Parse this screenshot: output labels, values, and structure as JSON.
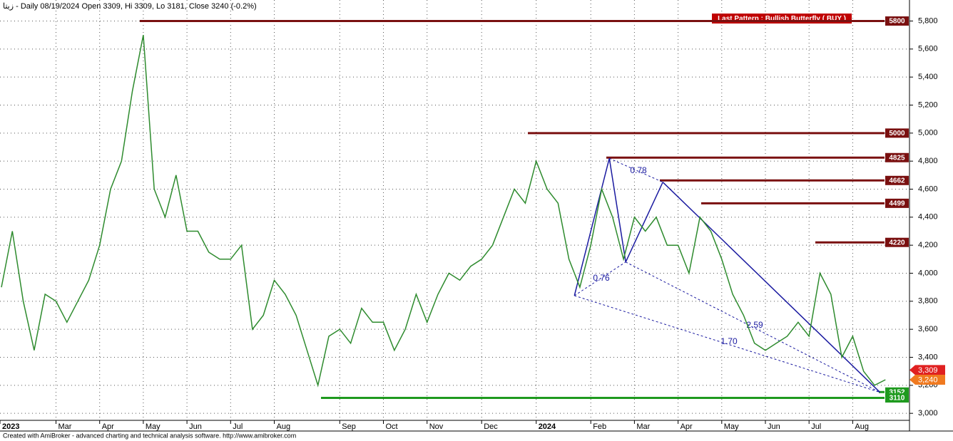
{
  "chart_data": {
    "type": "line",
    "title": "زيتا - Daily 08/19/2024 Open 3309, Hi 3309, Lo 3181, Close 3240 (-0.2%)",
    "pattern_label": "Last Pattern : Bullish Butterfly ( BUY )",
    "footer": "Created with AmiBroker - advanced charting and technical analysis software. http://www.amibroker.com",
    "x": [
      "2023",
      null,
      null,
      null,
      null,
      "Mar",
      null,
      null,
      null,
      "Apr",
      null,
      null,
      null,
      "May",
      null,
      null,
      null,
      "Jun",
      null,
      null,
      null,
      "Jul",
      null,
      null,
      null,
      "Aug",
      null,
      null,
      null,
      null,
      null,
      "Sep",
      null,
      null,
      null,
      "Oct",
      null,
      null,
      null,
      "Nov",
      null,
      null,
      null,
      null,
      "Dec",
      null,
      null,
      null,
      null,
      "2024",
      null,
      null,
      null,
      null,
      "Feb",
      null,
      null,
      null,
      "Mar",
      null,
      null,
      null,
      "Apr",
      null,
      null,
      null,
      "May",
      null,
      null,
      null,
      "Jun",
      null,
      null,
      null,
      "Jul",
      null,
      null,
      null,
      "Aug",
      null,
      null,
      null
    ],
    "series": [
      {
        "name": "Close",
        "color": "#2e8b2e",
        "values": [
          3900,
          4300,
          3800,
          3450,
          3850,
          3800,
          3650,
          3800,
          3950,
          4200,
          4600,
          4800,
          5300,
          5700,
          4600,
          4400,
          4700,
          4300,
          4300,
          4150,
          4100,
          4100,
          4200,
          3600,
          3700,
          3950,
          3850,
          3700,
          3450,
          3200,
          3550,
          3600,
          3500,
          3750,
          3650,
          3650,
          3450,
          3600,
          3850,
          3650,
          3850,
          4000,
          3950,
          4050,
          4100,
          4200,
          4400,
          4600,
          4500,
          4800,
          4600,
          4500,
          4100,
          3900,
          4200,
          4600,
          4400,
          4100,
          4400,
          4300,
          4400,
          4200,
          4200,
          4000,
          4400,
          4300,
          4100,
          3850,
          3700,
          3500,
          3450,
          3500,
          3550,
          3650,
          3550,
          4000,
          3850,
          3400,
          3550,
          3300,
          3200,
          3240
        ]
      }
    ],
    "levels": [
      {
        "value": 5800,
        "color": "#7a1010"
      },
      {
        "value": 5000,
        "color": "#7a1010"
      },
      {
        "value": 4825,
        "color": "#7a1010"
      },
      {
        "value": 4662,
        "color": "#7a1010"
      },
      {
        "value": 4499,
        "color": "#7a1010"
      },
      {
        "value": 4220,
        "color": "#7a1010"
      },
      {
        "value": 3152,
        "color": "#1e9a1e"
      },
      {
        "value": 3110,
        "color": "#1e9a1e"
      }
    ],
    "price_tags": [
      {
        "value": 3309,
        "label": "3,309",
        "color": "#e02020"
      },
      {
        "value": 3240,
        "label": "3,240",
        "color": "#f07a20"
      }
    ],
    "pattern": {
      "color": "#1a1aa0",
      "points": [
        3840,
        4820,
        4080,
        4650,
        3150
      ],
      "ratios": [
        "0.78",
        "0.76",
        "2.59",
        "1.70"
      ]
    },
    "ylim": [
      2950,
      5950
    ],
    "yticks": [
      {
        "value": 3000,
        "label": "3,000"
      },
      {
        "value": 3200,
        "label": "3,200"
      },
      {
        "value": 3400,
        "label": "3,400"
      },
      {
        "value": 3600,
        "label": "3,600"
      },
      {
        "value": 3800,
        "label": "3,800"
      },
      {
        "value": 4000,
        "label": "4,000"
      },
      {
        "value": 4200,
        "label": "4,200"
      },
      {
        "value": 4400,
        "label": "4,400"
      },
      {
        "value": 4600,
        "label": "4,600"
      },
      {
        "value": 4800,
        "label": "4,800"
      },
      {
        "value": 5000,
        "label": "5,000"
      },
      {
        "value": 5200,
        "label": "5,200"
      },
      {
        "value": 5400,
        "label": "5,400"
      },
      {
        "value": 5600,
        "label": "5,600"
      },
      {
        "value": 5800,
        "label": "5,800"
      }
    ],
    "grid": true
  }
}
